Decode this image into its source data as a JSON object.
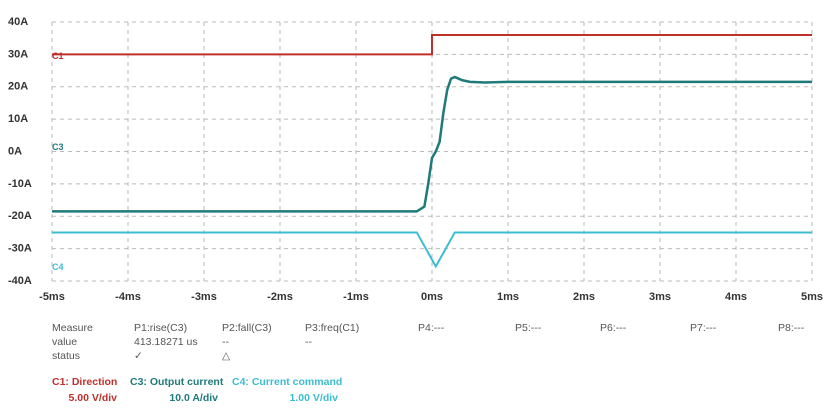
{
  "chart_data": {
    "type": "line",
    "xlim": [
      -5,
      5
    ],
    "ylim": [
      -40,
      40
    ],
    "xticks": [
      {
        "value": -5,
        "label": "-5ms"
      },
      {
        "value": -4,
        "label": "-4ms"
      },
      {
        "value": -3,
        "label": "-3ms"
      },
      {
        "value": -2,
        "label": "-2ms"
      },
      {
        "value": -1,
        "label": "-1ms"
      },
      {
        "value": 0,
        "label": "0ms"
      },
      {
        "value": 1,
        "label": "1ms"
      },
      {
        "value": 2,
        "label": "2ms"
      },
      {
        "value": 3,
        "label": "3ms"
      },
      {
        "value": 4,
        "label": "4ms"
      },
      {
        "value": 5,
        "label": "5ms"
      }
    ],
    "yticks": [
      {
        "value": 40,
        "label": "40A"
      },
      {
        "value": 30,
        "label": "30A"
      },
      {
        "value": 20,
        "label": "20A"
      },
      {
        "value": 10,
        "label": "10A"
      },
      {
        "value": 0,
        "label": "0A"
      },
      {
        "value": -10,
        "label": "-10A"
      },
      {
        "value": -20,
        "label": "-20A"
      },
      {
        "value": -30,
        "label": "-30A"
      },
      {
        "value": -40,
        "label": "-40A"
      }
    ],
    "grid": true,
    "series": [
      {
        "label": "C1",
        "name": "C1: Direction",
        "scale": "5.00 V/div",
        "color": "#c0302b",
        "x": [
          -5,
          0,
          0,
          5
        ],
        "values": [
          30,
          30,
          36,
          36
        ]
      },
      {
        "label": "C3",
        "name": "C3: Output current",
        "scale": "10.0 A/div",
        "color": "#1f7a7a",
        "x": [
          -5,
          -0.2,
          -0.1,
          -0.05,
          0,
          0.05,
          0.1,
          0.15,
          0.2,
          0.25,
          0.3,
          0.4,
          0.5,
          0.7,
          1,
          5
        ],
        "values": [
          -18.5,
          -18.5,
          -17,
          -10,
          -2,
          0,
          3,
          12,
          19,
          22.5,
          23,
          22,
          21.5,
          21.3,
          21.5,
          21.5
        ]
      },
      {
        "label": "C4",
        "name": "C4: Current command",
        "scale": "1.00 V/div",
        "color": "#3bbdd0",
        "x": [
          -5,
          -0.2,
          0.05,
          0.3,
          5
        ],
        "values": [
          -25,
          -25,
          -35.5,
          -25,
          -25
        ]
      }
    ],
    "measure_table": [
      [
        "Measure",
        "P1:rise(C3)",
        "P2:fall(C3)",
        "P3:freq(C1)",
        "P4:---",
        "P5:---",
        "P6:---",
        "P7:---",
        "P8:---"
      ],
      [
        "value",
        "413.18271 us",
        "--",
        "--"
      ],
      [
        "status",
        "✓",
        "△"
      ]
    ]
  }
}
